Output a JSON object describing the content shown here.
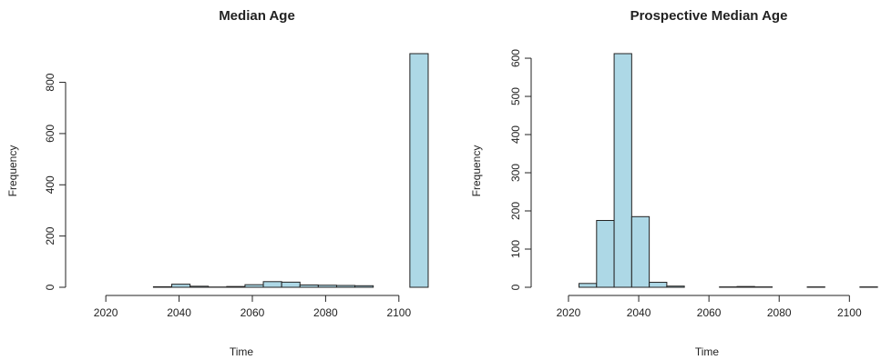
{
  "chart_data": [
    {
      "type": "histogram",
      "title": "Median Age",
      "xlabel": "Time",
      "ylabel": "Frequency",
      "xlim": [
        2013,
        2109
      ],
      "ylim": [
        0,
        912
      ],
      "xticks": [
        2020,
        2040,
        2060,
        2080,
        2100
      ],
      "yticks": [
        0,
        200,
        400,
        600,
        800
      ],
      "bar_color": "#ADD8E6",
      "bins": [
        {
          "x0": 2013,
          "x1": 2018,
          "count": 0
        },
        {
          "x0": 2018,
          "x1": 2023,
          "count": 0
        },
        {
          "x0": 2023,
          "x1": 2028,
          "count": 0
        },
        {
          "x0": 2028,
          "x1": 2033,
          "count": 0
        },
        {
          "x0": 2033,
          "x1": 2038,
          "count": 2
        },
        {
          "x0": 2038,
          "x1": 2043,
          "count": 12
        },
        {
          "x0": 2043,
          "x1": 2048,
          "count": 4
        },
        {
          "x0": 2048,
          "x1": 2053,
          "count": 1
        },
        {
          "x0": 2053,
          "x1": 2058,
          "count": 3
        },
        {
          "x0": 2058,
          "x1": 2063,
          "count": 10
        },
        {
          "x0": 2063,
          "x1": 2068,
          "count": 22
        },
        {
          "x0": 2068,
          "x1": 2073,
          "count": 20
        },
        {
          "x0": 2073,
          "x1": 2078,
          "count": 9
        },
        {
          "x0": 2078,
          "x1": 2083,
          "count": 8
        },
        {
          "x0": 2083,
          "x1": 2088,
          "count": 7
        },
        {
          "x0": 2088,
          "x1": 2093,
          "count": 6
        },
        {
          "x0": 2093,
          "x1": 2098,
          "count": 0
        },
        {
          "x0": 2098,
          "x1": 2103,
          "count": 0
        },
        {
          "x0": 2103,
          "x1": 2108,
          "count": 912
        }
      ]
    },
    {
      "type": "histogram",
      "title": "Prospective Median Age",
      "xlabel": "Time",
      "ylabel": "Frequency",
      "xlim": [
        2013,
        2109
      ],
      "ylim": [
        0,
        612
      ],
      "xticks": [
        2020,
        2040,
        2060,
        2080,
        2100
      ],
      "yticks": [
        0,
        100,
        200,
        300,
        400,
        500,
        600
      ],
      "bar_color": "#ADD8E6",
      "bins": [
        {
          "x0": 2018,
          "x1": 2023,
          "count": 0
        },
        {
          "x0": 2023,
          "x1": 2028,
          "count": 10
        },
        {
          "x0": 2028,
          "x1": 2033,
          "count": 175
        },
        {
          "x0": 2033,
          "x1": 2038,
          "count": 612
        },
        {
          "x0": 2038,
          "x1": 2043,
          "count": 185
        },
        {
          "x0": 2043,
          "x1": 2048,
          "count": 13
        },
        {
          "x0": 2048,
          "x1": 2053,
          "count": 3
        },
        {
          "x0": 2053,
          "x1": 2058,
          "count": 0
        },
        {
          "x0": 2058,
          "x1": 2063,
          "count": 0
        },
        {
          "x0": 2063,
          "x1": 2068,
          "count": 1
        },
        {
          "x0": 2068,
          "x1": 2073,
          "count": 2
        },
        {
          "x0": 2073,
          "x1": 2078,
          "count": 1
        },
        {
          "x0": 2078,
          "x1": 2083,
          "count": 0
        },
        {
          "x0": 2083,
          "x1": 2088,
          "count": 0
        },
        {
          "x0": 2088,
          "x1": 2093,
          "count": 1
        },
        {
          "x0": 2093,
          "x1": 2098,
          "count": 0
        },
        {
          "x0": 2098,
          "x1": 2103,
          "count": 0
        },
        {
          "x0": 2103,
          "x1": 2108,
          "count": 1
        }
      ]
    }
  ]
}
